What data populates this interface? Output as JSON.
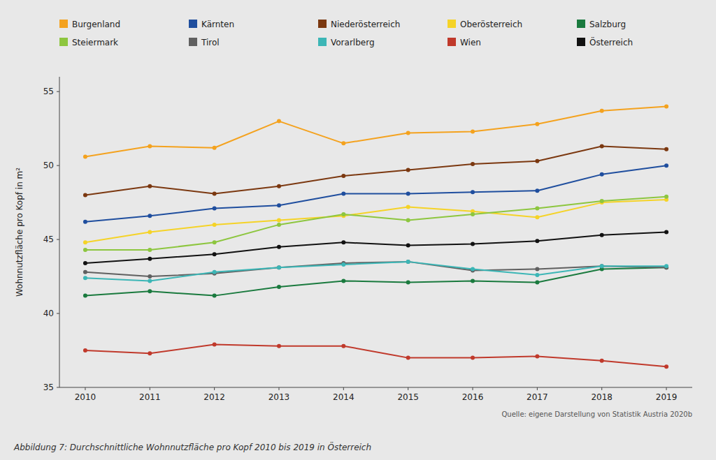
{
  "chart_data": {
    "type": "line",
    "x": [
      2010,
      2011,
      2012,
      2013,
      2014,
      2015,
      2016,
      2017,
      2018,
      2019
    ],
    "xlim": [
      2009.6,
      2019.4
    ],
    "xticks": [
      2010,
      2011,
      2012,
      2013,
      2014,
      2015,
      2016,
      2017,
      2018,
      2019
    ],
    "ylim": [
      35,
      56
    ],
    "yticks": [
      35,
      40,
      45,
      50,
      55
    ],
    "y_label": "Wohnnutzfläche pro Kopf in m²",
    "grid": false,
    "legend": "top",
    "marker": "circle",
    "annotations": [
      "Quelle: eigene Darstellung von Statistik Austria 2020b",
      "Abbildung 7: Durchschnittliche Wohnnutzfläche pro Kopf 2010 bis 2019 in Österreich"
    ],
    "series": [
      {
        "name": "Burgenland",
        "color": "#F4A21E",
        "values": [
          50.6,
          51.3,
          51.2,
          53.0,
          51.5,
          52.2,
          52.3,
          52.8,
          53.7,
          54.0
        ]
      },
      {
        "name": "Kärnten",
        "color": "#1F4E9E",
        "values": [
          46.2,
          46.6,
          47.1,
          47.3,
          48.1,
          48.1,
          48.2,
          48.3,
          49.4,
          50.0
        ]
      },
      {
        "name": "Niederösterreich",
        "color": "#7B3810",
        "values": [
          48.0,
          48.6,
          48.1,
          48.6,
          49.3,
          49.7,
          50.1,
          50.3,
          51.3,
          51.1
        ]
      },
      {
        "name": "Oberösterreich",
        "color": "#F5D327",
        "values": [
          44.8,
          45.5,
          46.0,
          46.3,
          46.6,
          47.2,
          46.9,
          46.5,
          47.5,
          47.7
        ]
      },
      {
        "name": "Salzburg",
        "color": "#1A7A3E",
        "values": [
          41.2,
          41.5,
          41.2,
          41.8,
          42.2,
          42.1,
          42.2,
          42.1,
          43.0,
          43.1
        ]
      },
      {
        "name": "Steiermark",
        "color": "#8DC63F",
        "values": [
          44.3,
          44.3,
          44.8,
          46.0,
          46.7,
          46.3,
          46.7,
          47.1,
          47.6,
          47.9
        ]
      },
      {
        "name": "Tirol",
        "color": "#606060",
        "values": [
          42.8,
          42.5,
          42.7,
          43.1,
          43.4,
          43.5,
          42.9,
          43.0,
          43.2,
          43.1
        ]
      },
      {
        "name": "Vorarlberg",
        "color": "#3CB6B6",
        "values": [
          42.4,
          42.2,
          42.8,
          43.1,
          43.3,
          43.5,
          43.0,
          42.6,
          43.2,
          43.2
        ]
      },
      {
        "name": "Wien",
        "color": "#C0392B",
        "values": [
          37.5,
          37.3,
          37.9,
          37.8,
          37.8,
          37.0,
          37.0,
          37.1,
          36.8,
          36.4
        ]
      },
      {
        "name": "Österreich",
        "color": "#111111",
        "values": [
          43.4,
          43.7,
          44.0,
          44.5,
          44.8,
          44.6,
          44.7,
          44.9,
          45.3,
          45.5
        ]
      }
    ]
  }
}
